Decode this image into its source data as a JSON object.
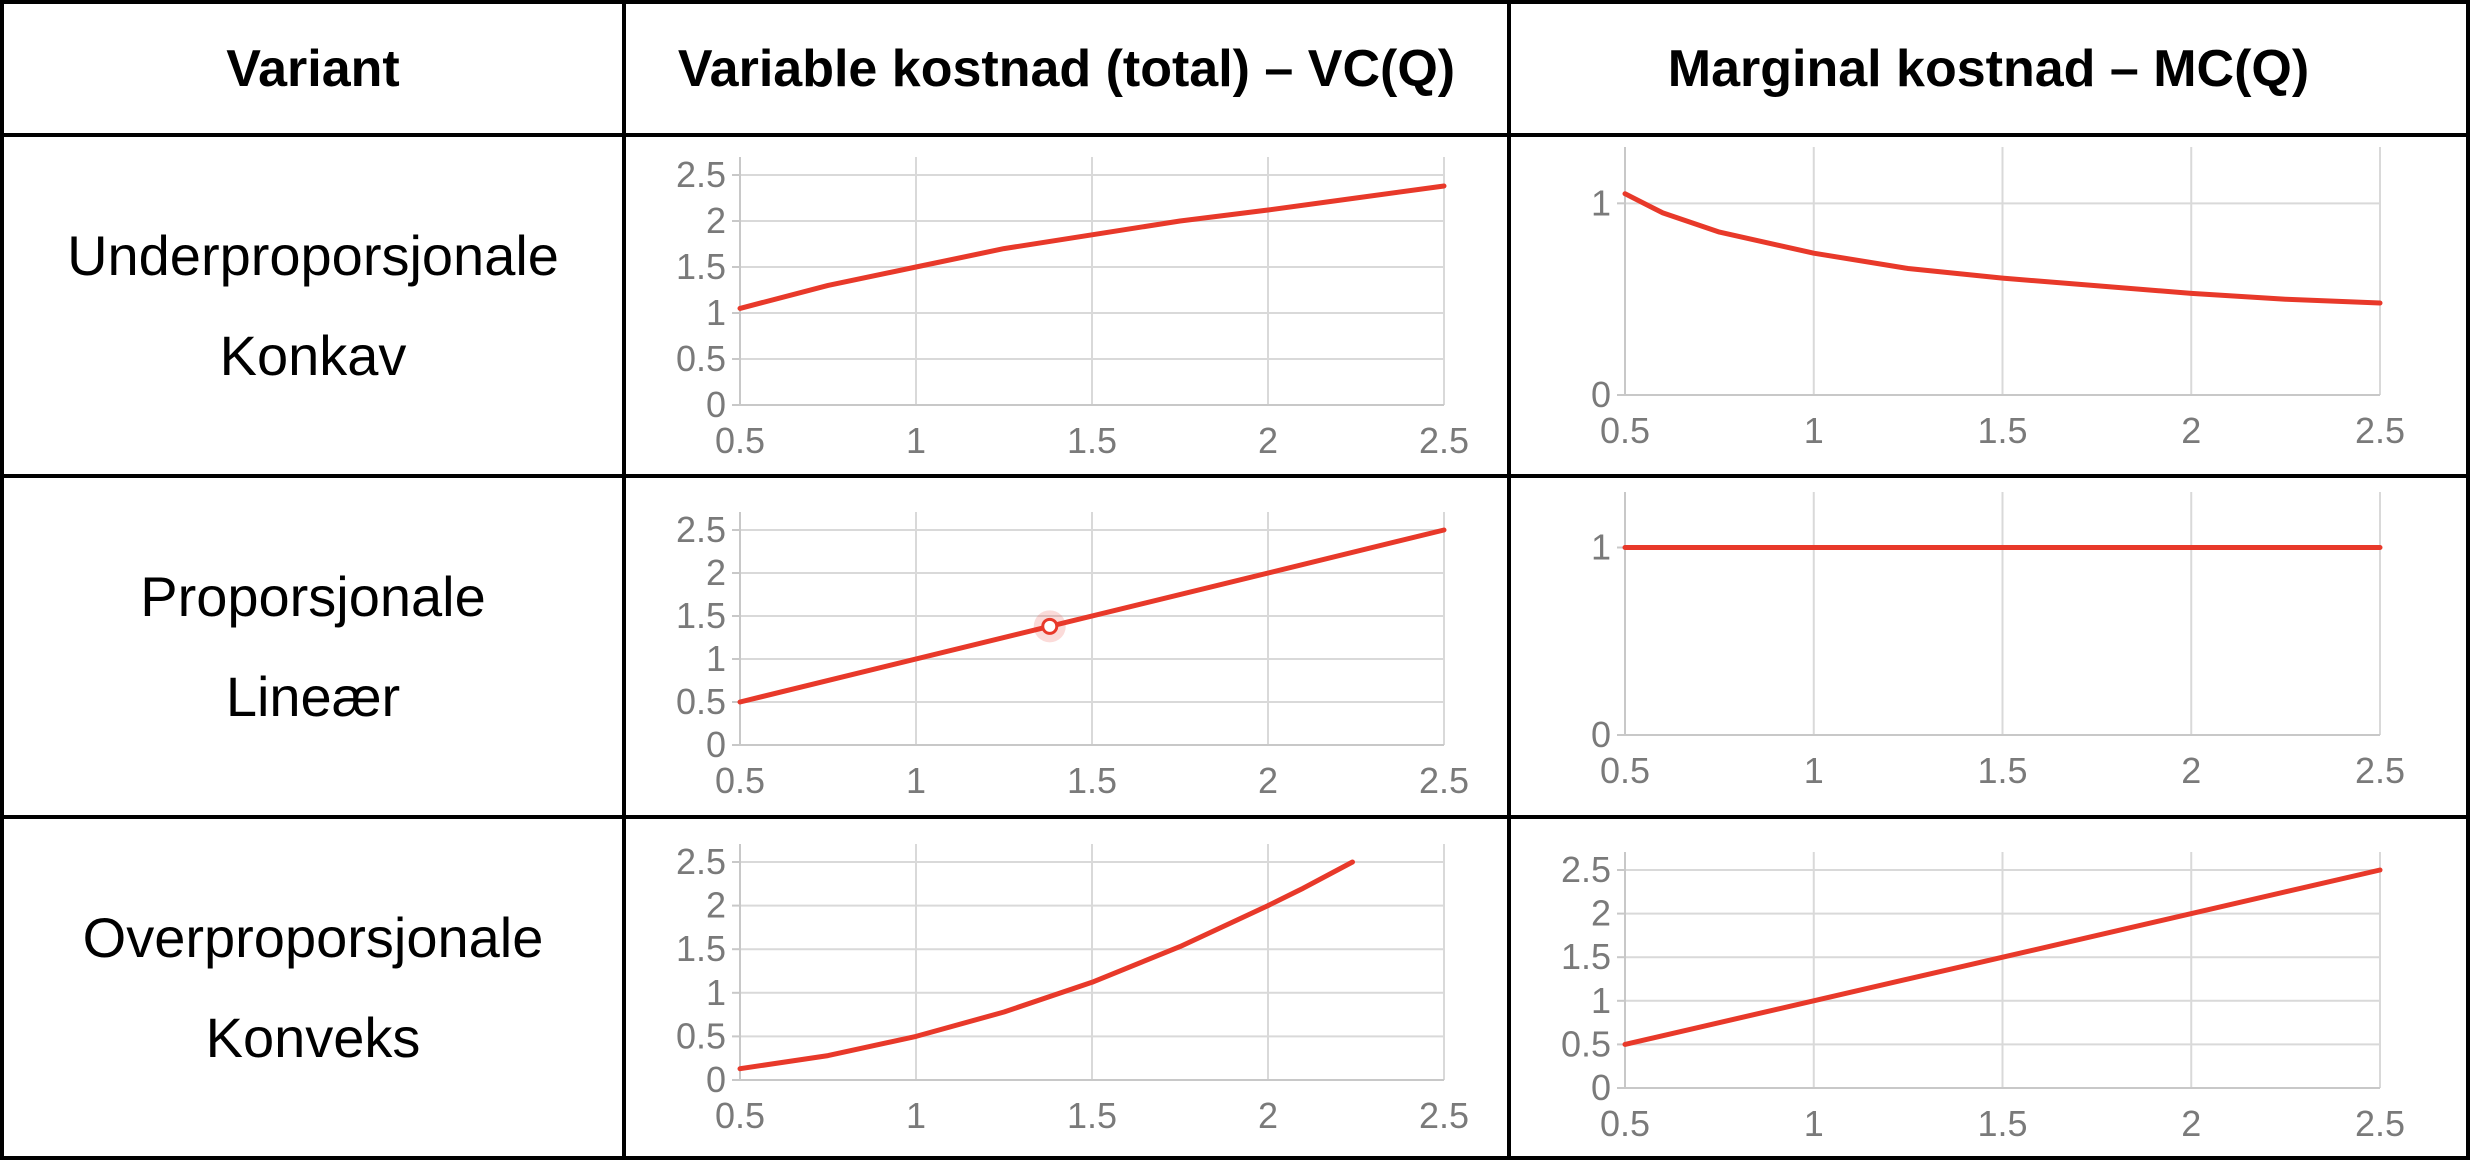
{
  "table": {
    "headers": [
      "Variant",
      "Variable kostnad (total) – VC(Q)",
      "Marginal kostnad – MC(Q)"
    ],
    "rows": [
      {
        "label_lines": [
          "Underproporsjonale",
          "Konkav"
        ]
      },
      {
        "label_lines": [
          "Proporsjonale",
          "Lineær"
        ]
      },
      {
        "label_lines": [
          "Overproporsjonale",
          "Konveks"
        ]
      }
    ]
  },
  "colors": {
    "series": "#e8392a",
    "grid": "#d9d9d9",
    "tick_text": "#7a7a7a",
    "border": "#000000"
  },
  "chart_data": [
    {
      "id": "vc-konkav",
      "type": "line",
      "x_ticks": [
        "0.5",
        "1",
        "1.5",
        "2",
        "2.5"
      ],
      "y_ticks": [
        "0",
        "0.5",
        "1",
        "1.5",
        "2",
        "2.5"
      ],
      "xlim": [
        0.5,
        2.5
      ],
      "ylim": [
        0,
        2.5
      ],
      "grid": true,
      "series": [
        {
          "x": [
            0.5,
            0.75,
            1,
            1.25,
            1.5,
            1.75,
            2,
            2.25,
            2.5
          ],
          "values": [
            1.05,
            1.3,
            1.5,
            1.7,
            1.85,
            2.0,
            2.12,
            2.25,
            2.38
          ]
        }
      ]
    },
    {
      "id": "mc-konkav",
      "type": "line",
      "x_ticks": [
        "0.5",
        "1",
        "1.5",
        "2",
        "2.5"
      ],
      "y_ticks": [
        "0",
        "1"
      ],
      "xlim": [
        0.5,
        2.5
      ],
      "ylim": [
        0,
        1.2
      ],
      "grid": true,
      "series": [
        {
          "x": [
            0.5,
            0.6,
            0.75,
            1,
            1.25,
            1.5,
            1.75,
            2,
            2.25,
            2.5
          ],
          "values": [
            1.05,
            0.95,
            0.85,
            0.74,
            0.66,
            0.61,
            0.57,
            0.53,
            0.5,
            0.48
          ]
        }
      ]
    },
    {
      "id": "vc-lineaer",
      "type": "line",
      "x_ticks": [
        "0.5",
        "1",
        "1.5",
        "2",
        "2.5"
      ],
      "y_ticks": [
        "0",
        "0.5",
        "1",
        "1.5",
        "2",
        "2.5"
      ],
      "xlim": [
        0.5,
        2.5
      ],
      "ylim": [
        0,
        2.5
      ],
      "grid": true,
      "series": [
        {
          "x": [
            0.5,
            2.5
          ],
          "values": [
            0.5,
            2.5
          ]
        }
      ],
      "marker": {
        "x": 1.38,
        "y": 1.38
      }
    },
    {
      "id": "mc-lineaer",
      "type": "line",
      "x_ticks": [
        "0.5",
        "1",
        "1.5",
        "2",
        "2.5"
      ],
      "y_ticks": [
        "0",
        "1"
      ],
      "xlim": [
        0.5,
        2.5
      ],
      "ylim": [
        0,
        1.2
      ],
      "grid": true,
      "series": [
        {
          "x": [
            0.5,
            2.5
          ],
          "values": [
            1,
            1
          ]
        }
      ]
    },
    {
      "id": "vc-konveks",
      "type": "line",
      "x_ticks": [
        "0.5",
        "1",
        "1.5",
        "2",
        "2.5"
      ],
      "y_ticks": [
        "0",
        "0.5",
        "1",
        "1.5",
        "2",
        "2.5"
      ],
      "xlim": [
        0.5,
        2.5
      ],
      "ylim": [
        0,
        2.5
      ],
      "grid": true,
      "series": [
        {
          "x": [
            0.5,
            0.75,
            1,
            1.25,
            1.5,
            1.75,
            2,
            2.1,
            2.24
          ],
          "values": [
            0.13,
            0.28,
            0.5,
            0.78,
            1.12,
            1.53,
            2.0,
            2.2,
            2.5
          ]
        }
      ]
    },
    {
      "id": "mc-konveks",
      "type": "line",
      "x_ticks": [
        "0.5",
        "1",
        "1.5",
        "2",
        "2.5"
      ],
      "y_ticks": [
        "0",
        "0.5",
        "1",
        "1.5",
        "2",
        "2.5"
      ],
      "xlim": [
        0.5,
        2.5
      ],
      "ylim": [
        0,
        2.5
      ],
      "grid": true,
      "series": [
        {
          "x": [
            0.5,
            2.5
          ],
          "values": [
            0.5,
            2.5
          ]
        }
      ]
    }
  ]
}
